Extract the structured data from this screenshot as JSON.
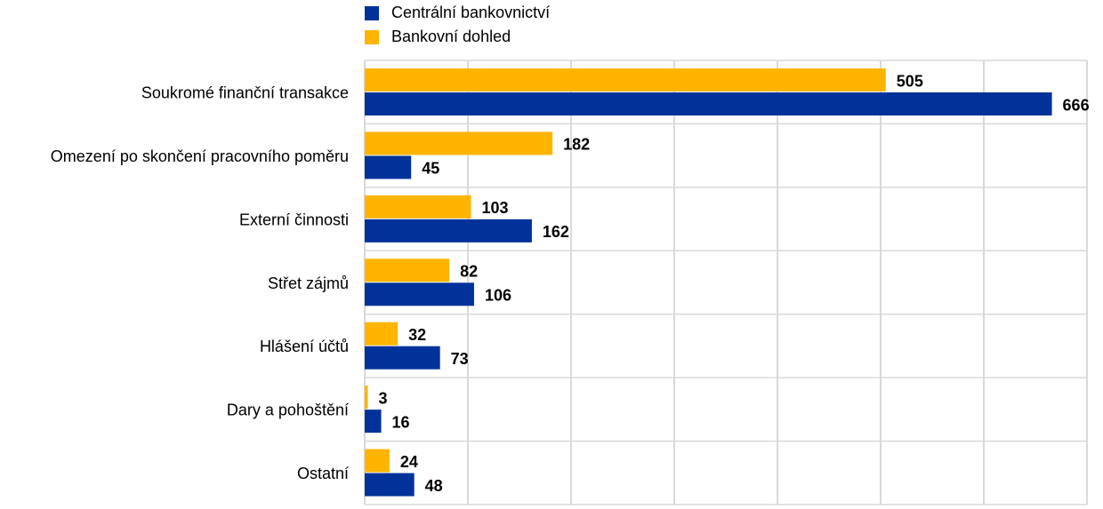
{
  "chart_data": {
    "type": "hbar",
    "categories": [
      "Soukromé finanční transakce",
      "Omezení po skončení pracovního poměru",
      "Externí činnosti",
      "Střet zájmů",
      "Hlášení účtů",
      "Dary a pohoštění",
      "Ostatní"
    ],
    "series": [
      {
        "name": "Centrální bankovnictví",
        "color": "#003299",
        "values": [
          666,
          45,
          162,
          106,
          73,
          16,
          48
        ]
      },
      {
        "name": "Bankovní dohled",
        "color": "#ffb400",
        "values": [
          505,
          182,
          103,
          82,
          32,
          3,
          24
        ]
      }
    ],
    "xlim": [
      0,
      700
    ],
    "xticks": [
      0,
      100,
      200,
      300,
      400,
      500,
      600,
      700
    ],
    "grid": true
  }
}
